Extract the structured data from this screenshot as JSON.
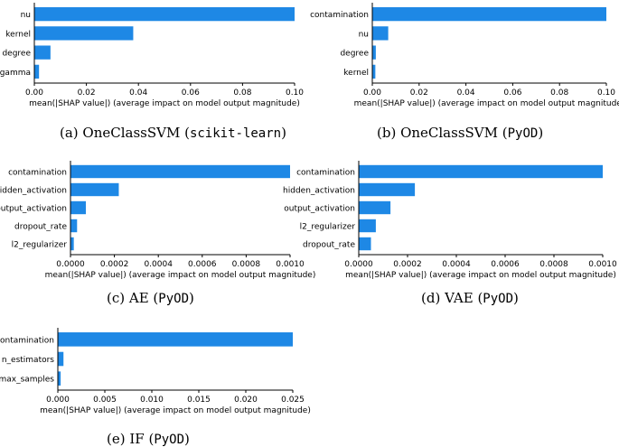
{
  "colors": {
    "bar": "#1e88e5",
    "axis": "#000000"
  },
  "captions": [
    {
      "prefix": "(a) OneClassSVM (",
      "mono": "scikit-learn",
      "suffix": ")"
    },
    {
      "prefix": "(b) OneClassSVM (",
      "mono": "PyOD",
      "suffix": ")"
    },
    {
      "prefix": "(c) AE (",
      "mono": "PyOD",
      "suffix": ")"
    },
    {
      "prefix": "(d) VAE (",
      "mono": "PyOD",
      "suffix": ")"
    },
    {
      "prefix": "(e) IF (",
      "mono": "PyOD",
      "suffix": ")"
    }
  ],
  "chart_data": [
    {
      "type": "bar",
      "orientation": "horizontal",
      "categories": [
        "nu",
        "kernel",
        "degree",
        "gamma"
      ],
      "values": [
        0.1,
        0.038,
        0.0062,
        0.0018
      ],
      "xlabel": "mean(|SHAP value|) (average impact on model output magnitude)",
      "xlim": [
        0,
        0.1
      ],
      "xticks": [
        "0.00",
        "0.02",
        "0.04",
        "0.06",
        "0.08",
        "0.10"
      ]
    },
    {
      "type": "bar",
      "orientation": "horizontal",
      "categories": [
        "contamination",
        "nu",
        "degree",
        "kernel"
      ],
      "values": [
        0.1,
        0.0068,
        0.0015,
        0.0013
      ],
      "xlabel": "mean(|SHAP value|) (average impact on model output magnitude)",
      "xlim": [
        0,
        0.1
      ],
      "xticks": [
        "0.00",
        "0.02",
        "0.04",
        "0.06",
        "0.08",
        "0.10"
      ]
    },
    {
      "type": "bar",
      "orientation": "horizontal",
      "categories": [
        "contamination",
        "hidden_activation",
        "output_activation",
        "dropout_rate",
        "l2_regularizer"
      ],
      "values": [
        0.001,
        0.00022,
        7e-05,
        3e-05,
        1.5e-05
      ],
      "xlabel": "mean(|SHAP value|) (average impact on model output magnitude)",
      "xlim": [
        0,
        0.001
      ],
      "xticks": [
        "0.0000",
        "0.0002",
        "0.0004",
        "0.0006",
        "0.0008",
        "0.0010"
      ]
    },
    {
      "type": "bar",
      "orientation": "horizontal",
      "categories": [
        "contamination",
        "hidden_activation",
        "output_activation",
        "l2_regularizer",
        "dropout_rate"
      ],
      "values": [
        0.001,
        0.00023,
        0.00013,
        7e-05,
        5e-05
      ],
      "xlabel": "mean(|SHAP value|) (average impact on model output magnitude)",
      "xlim": [
        0,
        0.001
      ],
      "xticks": [
        "0.0000",
        "0.0002",
        "0.0004",
        "0.0006",
        "0.0008",
        "0.0010"
      ]
    },
    {
      "type": "bar",
      "orientation": "horizontal",
      "categories": [
        "contamination",
        "n_estimators",
        "max_samples"
      ],
      "values": [
        0.025,
        0.0006,
        0.0003
      ],
      "xlabel": "mean(|SHAP value|) (average impact on model output magnitude)",
      "xlim": [
        0,
        0.025
      ],
      "xticks": [
        "0.000",
        "0.005",
        "0.010",
        "0.015",
        "0.020",
        "0.025"
      ]
    }
  ]
}
